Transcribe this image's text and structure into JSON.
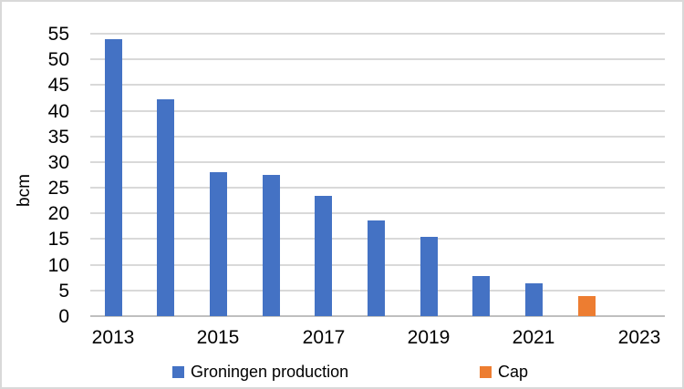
{
  "chart_data": {
    "type": "bar",
    "title": "",
    "ylabel": "bcm",
    "xlabel": "",
    "ylim": [
      0,
      55
    ],
    "y_tick_step": 5,
    "y_ticks": [
      0,
      5,
      10,
      15,
      20,
      25,
      30,
      35,
      40,
      45,
      50,
      55
    ],
    "x_ticks": [
      {
        "year": 2013,
        "label": "2013"
      },
      {
        "year": 2015,
        "label": "2015"
      },
      {
        "year": 2017,
        "label": "2017"
      },
      {
        "year": 2019,
        "label": "2019"
      },
      {
        "year": 2021,
        "label": "2021"
      },
      {
        "year": 2023,
        "label": "2023"
      }
    ],
    "grid": true,
    "legend_position": "bottom",
    "series": [
      {
        "name": "Groningen production",
        "color": "#4472C4",
        "points": [
          {
            "year": 2013,
            "value": 53.9
          },
          {
            "year": 2014,
            "value": 42.3
          },
          {
            "year": 2015,
            "value": 28.0
          },
          {
            "year": 2016,
            "value": 27.5
          },
          {
            "year": 2017,
            "value": 23.5
          },
          {
            "year": 2018,
            "value": 18.7
          },
          {
            "year": 2019,
            "value": 15.5
          },
          {
            "year": 2020,
            "value": 7.8
          },
          {
            "year": 2021,
            "value": 6.3
          }
        ]
      },
      {
        "name": "Cap",
        "color": "#ED7D31",
        "points": [
          {
            "year": 2022,
            "value": 3.9
          }
        ]
      }
    ],
    "colors": {
      "gridline": "#D9D9D9",
      "axis_line": "#BFBFBF",
      "text": "#000000"
    }
  }
}
